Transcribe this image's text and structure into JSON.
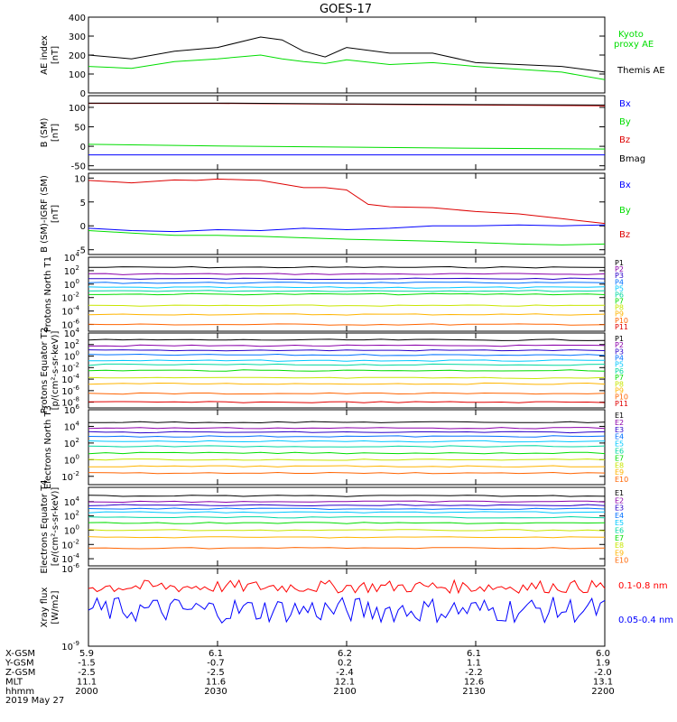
{
  "title": "GOES-17",
  "colors": {
    "black": "#000000",
    "green": "#00dd00",
    "blue": "#0000ff",
    "red": "#dd0000",
    "bright_green": "#00ff00",
    "bright_red": "#ff0000"
  },
  "channel_colors": {
    "protons": [
      "#000000",
      "#8b00aa",
      "#2a00c8",
      "#0070ff",
      "#00c8ff",
      "#00d8a0",
      "#00dd00",
      "#c8e600",
      "#ffb400",
      "#ff6400",
      "#e00000"
    ],
    "electrons": [
      "#000000",
      "#8b00aa",
      "#2a00c8",
      "#0070ff",
      "#00c8ff",
      "#00d8a0",
      "#00dd00",
      "#c8e600",
      "#ffb400",
      "#ff6400"
    ]
  },
  "chart_data": [
    {
      "type": "line",
      "id": "ae",
      "ylabel": "AE index [nT]",
      "ylim": [
        0,
        400
      ],
      "yticks": [
        "0",
        "100",
        "200",
        "300",
        "400"
      ],
      "xlim": [
        0,
        120
      ],
      "series": [
        {
          "name": "Themis AE",
          "color": "#000000",
          "x": [
            0,
            10,
            20,
            30,
            40,
            45,
            50,
            55,
            60,
            70,
            80,
            90,
            100,
            110,
            120
          ],
          "y": [
            200,
            180,
            220,
            240,
            295,
            280,
            220,
            190,
            240,
            210,
            210,
            160,
            150,
            140,
            110
          ]
        },
        {
          "name": "Kyoto proxy AE",
          "color": "#00dd00",
          "x": [
            0,
            10,
            20,
            30,
            40,
            45,
            50,
            55,
            60,
            70,
            80,
            90,
            100,
            110,
            120
          ],
          "y": [
            140,
            130,
            165,
            180,
            200,
            180,
            165,
            155,
            175,
            150,
            160,
            140,
            125,
            110,
            70
          ]
        }
      ]
    },
    {
      "type": "line",
      "id": "bsm",
      "ylabel": "B (SM) [nT]",
      "ylim": [
        -60,
        130
      ],
      "yticks": [
        "-50",
        "0",
        "50",
        "100"
      ],
      "xlim": [
        0,
        120
      ],
      "series": [
        {
          "name": "Bx",
          "color": "#0000ff",
          "x": [
            0,
            120
          ],
          "y": [
            -22,
            -22
          ]
        },
        {
          "name": "By",
          "color": "#00dd00",
          "x": [
            0,
            30,
            60,
            90,
            120
          ],
          "y": [
            5,
            1,
            -2,
            -5,
            -7
          ]
        },
        {
          "name": "Bz",
          "color": "#dd0000",
          "x": [
            0,
            30,
            60,
            90,
            120
          ],
          "y": [
            110,
            110,
            108,
            106,
            104
          ]
        },
        {
          "name": "Bmag",
          "color": "#000000",
          "x": [
            0,
            30,
            60,
            90,
            120
          ],
          "y": [
            111,
            111,
            109,
            107,
            106
          ]
        }
      ]
    },
    {
      "type": "line",
      "id": "bdiff",
      "ylabel": "B (SM)-IGRF (SM) [nT]",
      "ylim": [
        -6,
        11
      ],
      "yticks": [
        "-5",
        "0",
        "5",
        "10"
      ],
      "xlim": [
        0,
        120
      ],
      "series": [
        {
          "name": "Bx",
          "color": "#0000ff",
          "x": [
            0,
            10,
            20,
            30,
            40,
            50,
            60,
            70,
            80,
            90,
            100,
            110,
            120
          ],
          "y": [
            -0.5,
            -1,
            -1.2,
            -0.8,
            -1,
            -0.5,
            -0.8,
            -0.5,
            0,
            0,
            0.2,
            0,
            0.2
          ]
        },
        {
          "name": "By",
          "color": "#00dd00",
          "x": [
            0,
            10,
            20,
            30,
            40,
            50,
            60,
            70,
            80,
            90,
            100,
            110,
            120
          ],
          "y": [
            -1,
            -1.5,
            -2,
            -2,
            -2.2,
            -2.5,
            -2.8,
            -3,
            -3.2,
            -3.5,
            -3.8,
            -4,
            -3.8
          ]
        },
        {
          "name": "Bz",
          "color": "#dd0000",
          "x": [
            0,
            10,
            20,
            25,
            30,
            40,
            50,
            55,
            60,
            65,
            70,
            80,
            90,
            100,
            110,
            120
          ],
          "y": [
            9.5,
            9,
            9.6,
            9.5,
            9.8,
            9.5,
            8,
            8,
            7.5,
            4.5,
            4,
            3.8,
            3,
            2.5,
            1.5,
            0.5
          ]
        }
      ]
    },
    {
      "type": "line",
      "id": "protons_t1",
      "ylabel": "Protons North T1",
      "scale": "log",
      "ylim_exp": [
        -7,
        4
      ],
      "yticks": [
        "10^4",
        "10^2",
        "10^0",
        "10^-2",
        "10^-4",
        "10^-6"
      ],
      "legend": [
        "P1",
        "P2",
        "P3",
        "P4",
        "P5",
        "P6",
        "P7",
        "P8",
        "P9",
        "P10",
        "P11"
      ],
      "levels_exp": [
        2.5,
        1.5,
        0.8,
        0.2,
        -0.5,
        -1,
        -1.5,
        -3.2,
        -4.5,
        -6,
        -7.5
      ]
    },
    {
      "type": "line",
      "id": "protons_t2",
      "ylabel": "Protons Equator T2 [p/(cm²-s-sr-keV)]",
      "scale": "log",
      "ylim_exp": [
        -9,
        4
      ],
      "yticks": [
        "10^4",
        "10^2",
        "10^0",
        "10^-2",
        "10^-4",
        "10^-6",
        "10^-8"
      ],
      "legend": [
        "P1",
        "P2",
        "P3",
        "P4",
        "P5",
        "P6",
        "P7",
        "P8",
        "P9",
        "P10",
        "P11"
      ],
      "levels_exp": [
        2.8,
        1.8,
        1,
        0.2,
        -0.8,
        -1.5,
        -2.5,
        -3.8,
        -4.8,
        -6.5,
        -8
      ]
    },
    {
      "type": "line",
      "id": "electrons_t3",
      "ylabel": "Electrons North T3",
      "scale": "log",
      "ylim_exp": [
        -3,
        6
      ],
      "yticks": [
        "10^6",
        "10^4",
        "10^2",
        "10^0",
        "10^-2"
      ],
      "legend": [
        "E1",
        "E2",
        "E3",
        "E4",
        "E5",
        "E6",
        "E7",
        "E8",
        "E9",
        "E10"
      ],
      "levels_exp": [
        4.5,
        3.8,
        3.3,
        2.8,
        2.2,
        1.6,
        0.8,
        0,
        -0.8,
        -1.6
      ]
    },
    {
      "type": "line",
      "id": "electrons_t4",
      "ylabel": "Electrons Equator T4 [e/(cm²-s-sr-keV)]",
      "scale": "log",
      "ylim_exp": [
        -5,
        6
      ],
      "yticks": [
        "10^4",
        "10^2",
        "10^0",
        "10^-2",
        "10^-4"
      ],
      "legend": [
        "E1",
        "E2",
        "E3",
        "E4",
        "E5",
        "E6",
        "E7",
        "E8",
        "E9",
        "E10"
      ],
      "levels_exp": [
        4.8,
        4,
        3.5,
        3,
        2.5,
        1.8,
        1,
        0,
        -1,
        -2.5
      ]
    },
    {
      "type": "line",
      "id": "xray",
      "ylabel": "Xray flux [W/m2]",
      "scale": "log",
      "ylim_exp": [
        -9,
        -6
      ],
      "yticks": [
        "10^-6",
        "10^-9"
      ],
      "xlim": [
        0,
        120
      ],
      "series": [
        {
          "name": "0.1-0.8 nm",
          "color": "#ff0000",
          "level_exp": -6.7,
          "noise": 0.25
        },
        {
          "name": "0.05-0.4 nm",
          "color": "#0000ff",
          "level_exp": -7.6,
          "noise": 0.5
        }
      ]
    }
  ],
  "x_axis": {
    "labels": [
      {
        "rows": [
          "5.9",
          "-1.5",
          "-2.5",
          "11.1",
          "2000"
        ]
      },
      {
        "rows": [
          "6.1",
          "-0.7",
          "-2.5",
          "11.6",
          "2030"
        ]
      },
      {
        "rows": [
          "6.2",
          "0.2",
          "-2.4",
          "12.1",
          "2100"
        ]
      },
      {
        "rows": [
          "6.1",
          "1.1",
          "-2.2",
          "12.6",
          "2130"
        ]
      },
      {
        "rows": [
          "6.0",
          "1.9",
          "-2.0",
          "13.1",
          "2200"
        ]
      }
    ],
    "row_names": [
      "X-GSM",
      "Y-GSM",
      "Z-GSM",
      "MLT",
      "hhmm"
    ],
    "date": "2019 May 27"
  }
}
